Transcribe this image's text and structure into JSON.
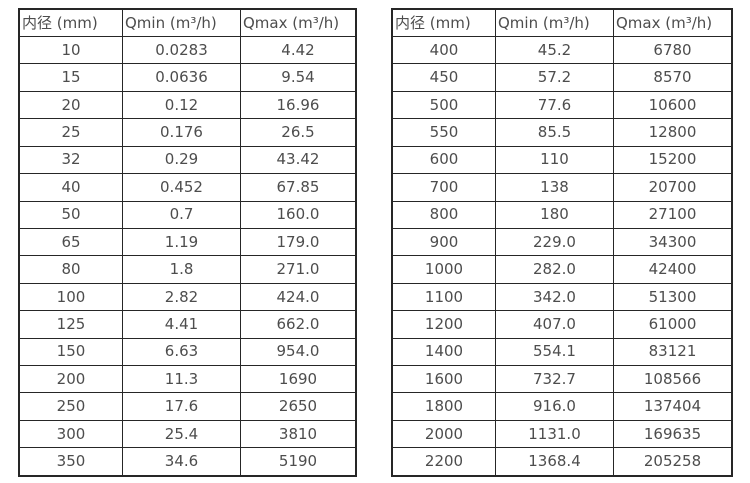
{
  "colors": {
    "background": "#ffffff",
    "border": "#262626",
    "text": "#4d4d4d"
  },
  "tables": [
    {
      "name": "flow-table-small-diameters",
      "headers": [
        "内径 (mm)",
        "Qmin (m³/h)",
        "Qmax (m³/h)"
      ],
      "rows": [
        [
          "10",
          "0.0283",
          "4.42"
        ],
        [
          "15",
          "0.0636",
          "9.54"
        ],
        [
          "20",
          "0.12",
          "16.96"
        ],
        [
          "25",
          "0.176",
          "26.5"
        ],
        [
          "32",
          "0.29",
          "43.42"
        ],
        [
          "40",
          "0.452",
          "67.85"
        ],
        [
          "50",
          "0.7",
          "160.0"
        ],
        [
          "65",
          "1.19",
          "179.0"
        ],
        [
          "80",
          "1.8",
          "271.0"
        ],
        [
          "100",
          "2.82",
          "424.0"
        ],
        [
          "125",
          "4.41",
          "662.0"
        ],
        [
          "150",
          "6.63",
          "954.0"
        ],
        [
          "200",
          "11.3",
          "1690"
        ],
        [
          "250",
          "17.6",
          "2650"
        ],
        [
          "300",
          "25.4",
          "3810"
        ],
        [
          "350",
          "34.6",
          "5190"
        ]
      ]
    },
    {
      "name": "flow-table-large-diameters",
      "headers": [
        "内径 (mm)",
        "Qmin (m³/h)",
        "Qmax (m³/h)"
      ],
      "rows": [
        [
          "400",
          "45.2",
          "6780"
        ],
        [
          "450",
          "57.2",
          "8570"
        ],
        [
          "500",
          "77.6",
          "10600"
        ],
        [
          "550",
          "85.5",
          "12800"
        ],
        [
          "600",
          "110",
          "15200"
        ],
        [
          "700",
          "138",
          "20700"
        ],
        [
          "800",
          "180",
          "27100"
        ],
        [
          "900",
          "229.0",
          "34300"
        ],
        [
          "1000",
          "282.0",
          "42400"
        ],
        [
          "1100",
          "342.0",
          "51300"
        ],
        [
          "1200",
          "407.0",
          "61000"
        ],
        [
          "1400",
          "554.1",
          "83121"
        ],
        [
          "1600",
          "732.7",
          "108566"
        ],
        [
          "1800",
          "916.0",
          "137404"
        ],
        [
          "2000",
          "1131.0",
          "169635"
        ],
        [
          "2200",
          "1368.4",
          "205258"
        ]
      ]
    }
  ]
}
